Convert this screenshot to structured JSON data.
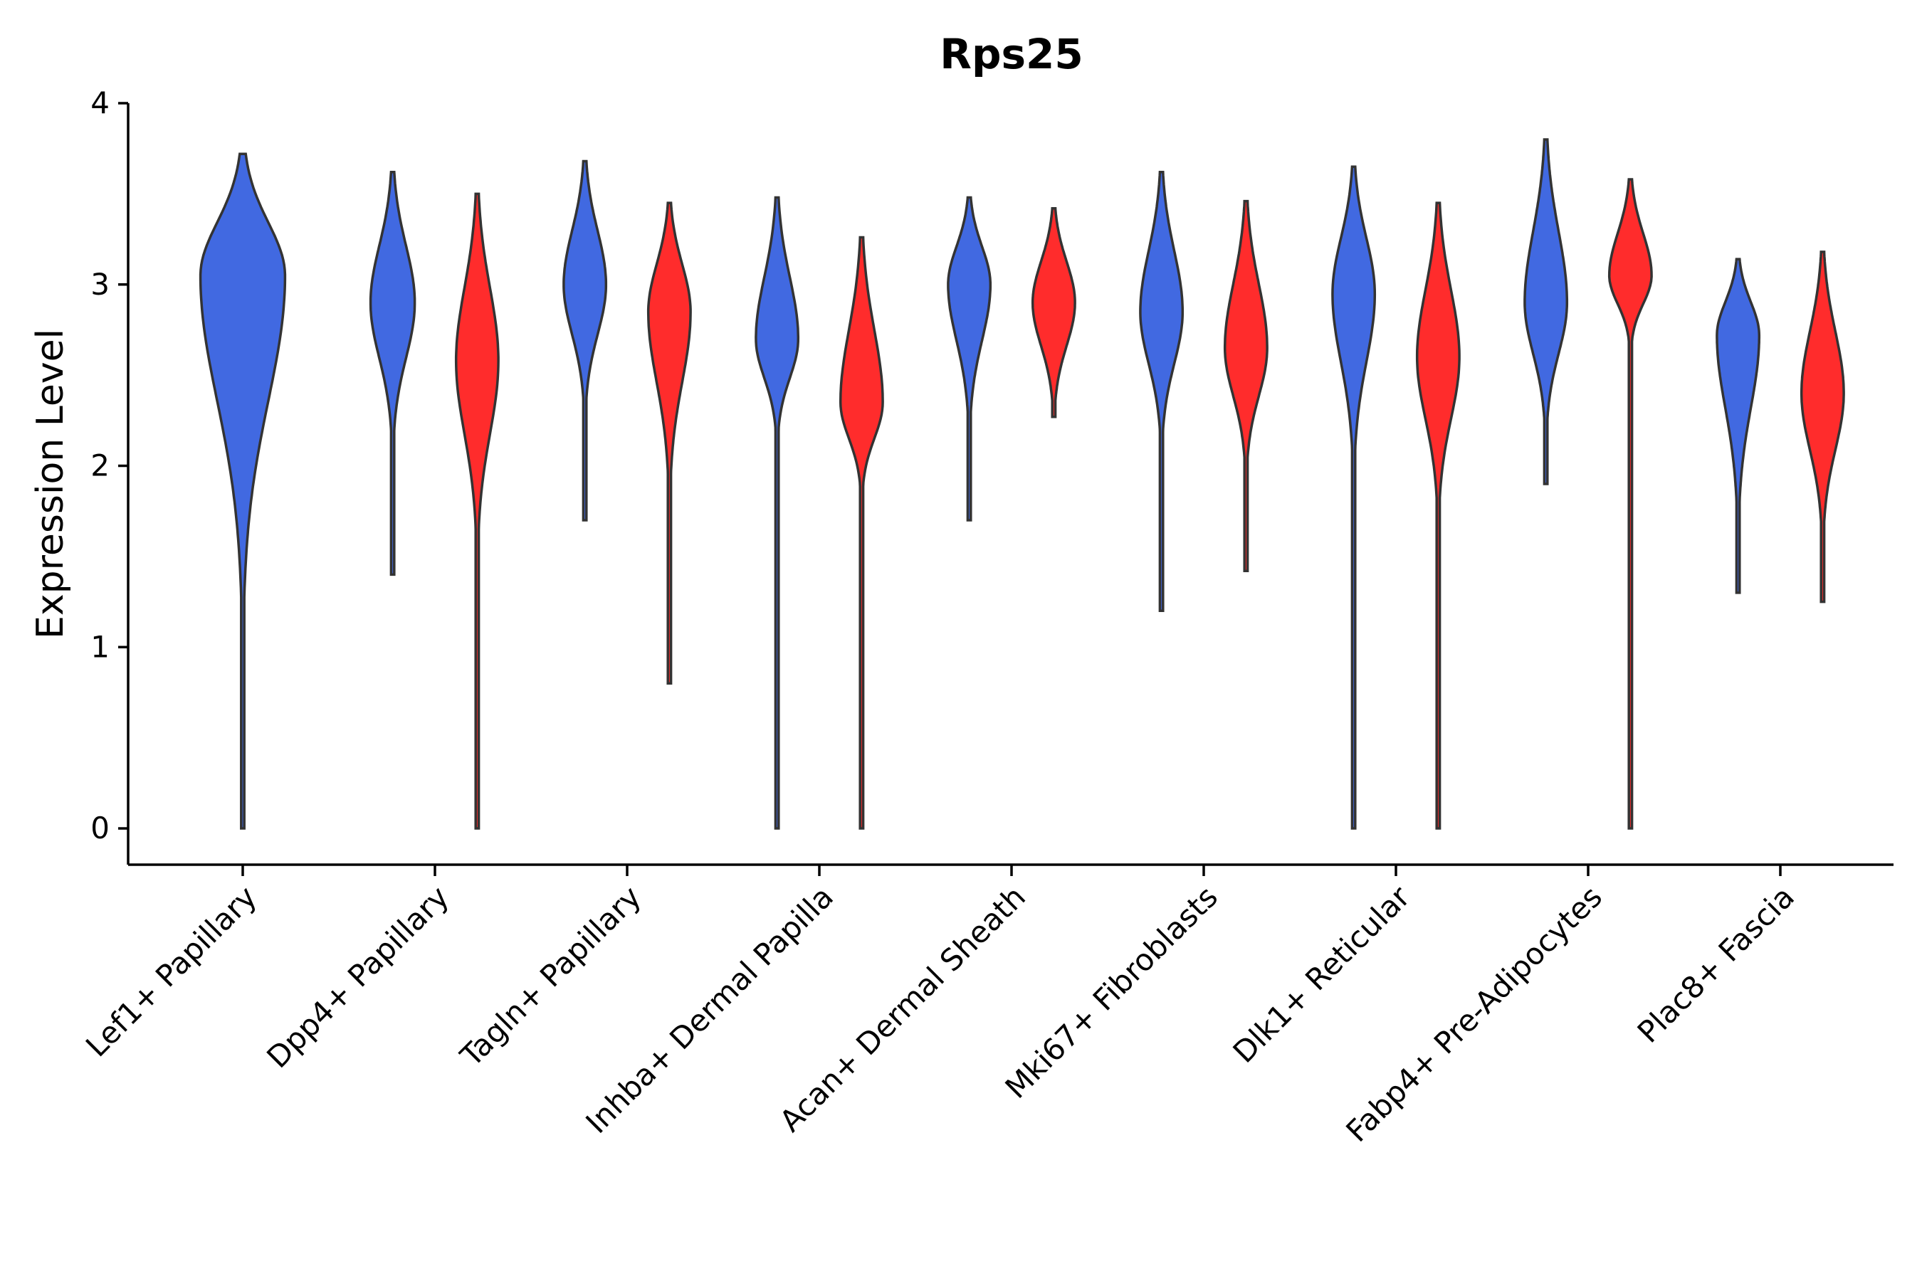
{
  "chart_data": {
    "type": "violin",
    "title": "Rps25",
    "xlabel": "",
    "ylabel": "Expression Level",
    "ylim": [
      -0.2,
      4
    ],
    "yticks": [
      0,
      1,
      2,
      3,
      4
    ],
    "legend": "none",
    "colors": {
      "blue": "#4169E1",
      "red": "#FF2C2C"
    },
    "categories": [
      "Lef1+ Papillary",
      "Dpp4+ Papillary",
      "Tagln+ Papillary",
      "Inhba+ Dermal Papilla",
      "Acan+ Dermal Sheath",
      "Mki67+ Fibroblasts",
      "Dlk1+ Reticular",
      "Fabp4+ Pre-Adipocytes",
      "Plac8+ Fascia"
    ],
    "violins": [
      {
        "category": "Lef1+ Papillary",
        "group": "blue",
        "min": 0,
        "max": 3.72,
        "peak": 3.05,
        "width": 0.44,
        "offset": 0,
        "tail": 0.6
      },
      {
        "category": "Dpp4+ Papillary",
        "group": "blue",
        "min": 1.4,
        "max": 3.62,
        "peak": 2.9,
        "width": 0.23,
        "offset": -0.22,
        "tail": 0.7
      },
      {
        "category": "Dpp4+ Papillary",
        "group": "red",
        "min": 0,
        "max": 3.5,
        "peak": 2.58,
        "width": 0.22,
        "offset": 0.22,
        "tail": 0.75
      },
      {
        "category": "Tagln+ Papillary",
        "group": "blue",
        "min": 1.7,
        "max": 3.68,
        "peak": 3.0,
        "width": 0.22,
        "offset": -0.22,
        "tail": 0.7
      },
      {
        "category": "Tagln+ Papillary",
        "group": "red",
        "min": 0.8,
        "max": 3.45,
        "peak": 2.85,
        "width": 0.22,
        "offset": 0.22,
        "tail": 0.7
      },
      {
        "category": "Inhba+ Dermal Papilla",
        "group": "blue",
        "min": 0,
        "max": 3.48,
        "peak": 2.7,
        "width": 0.22,
        "offset": -0.22,
        "tail": 0.9
      },
      {
        "category": "Inhba+ Dermal Papilla",
        "group": "red",
        "min": 0,
        "max": 3.26,
        "peak": 2.35,
        "width": 0.22,
        "offset": 0.22,
        "tail": 0.9
      },
      {
        "category": "Acan+ Dermal Sheath",
        "group": "blue",
        "min": 1.7,
        "max": 3.48,
        "peak": 3.0,
        "width": 0.22,
        "offset": -0.22,
        "tail": 0.65
      },
      {
        "category": "Acan+ Dermal Sheath",
        "group": "red",
        "min": 2.27,
        "max": 3.42,
        "peak": 2.9,
        "width": 0.22,
        "offset": 0.22,
        "tail": 0.5
      },
      {
        "category": "Mki67+ Fibroblasts",
        "group": "blue",
        "min": 1.2,
        "max": 3.62,
        "peak": 2.85,
        "width": 0.22,
        "offset": -0.22,
        "tail": 0.75
      },
      {
        "category": "Mki67+ Fibroblasts",
        "group": "red",
        "min": 1.42,
        "max": 3.46,
        "peak": 2.65,
        "width": 0.22,
        "offset": 0.22,
        "tail": 0.7
      },
      {
        "category": "Dlk1+ Reticular",
        "group": "blue",
        "min": 0,
        "max": 3.65,
        "peak": 2.95,
        "width": 0.22,
        "offset": -0.22,
        "tail": 0.8
      },
      {
        "category": "Dlk1+ Reticular",
        "group": "red",
        "min": 0,
        "max": 3.45,
        "peak": 2.6,
        "width": 0.22,
        "offset": 0.22,
        "tail": 0.8
      },
      {
        "category": "Fabp4+ Pre-Adipocytes",
        "group": "blue",
        "min": 1.9,
        "max": 3.8,
        "peak": 2.9,
        "width": 0.22,
        "offset": -0.22,
        "tail": 0.6
      },
      {
        "category": "Fabp4+ Pre-Adipocytes",
        "group": "red",
        "min": 0,
        "max": 3.58,
        "peak": 3.05,
        "width": 0.22,
        "offset": 0.22,
        "tail": 0.95
      },
      {
        "category": "Plac8+ Fascia",
        "group": "blue",
        "min": 1.3,
        "max": 3.14,
        "peak": 2.72,
        "width": 0.22,
        "offset": -0.22,
        "tail": 0.55
      },
      {
        "category": "Plac8+ Fascia",
        "group": "red",
        "min": 1.25,
        "max": 3.18,
        "peak": 2.4,
        "width": 0.22,
        "offset": 0.22,
        "tail": 0.6
      }
    ]
  }
}
